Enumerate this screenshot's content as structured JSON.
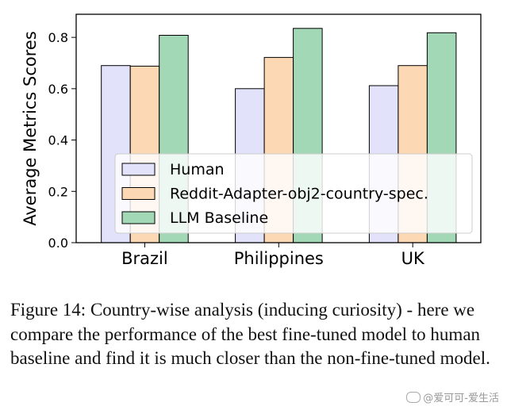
{
  "chart_data": {
    "type": "bar",
    "categories": [
      "Brazil",
      "Philippines",
      "UK"
    ],
    "series": [
      {
        "name": "Human",
        "values": [
          0.69,
          0.6,
          0.612
        ],
        "color": "#e2e2fa"
      },
      {
        "name": "Reddit-Adapter-obj2-country-spec.",
        "values": [
          0.688,
          0.722,
          0.69
        ],
        "color": "#fdd8b5"
      },
      {
        "name": "LLM Baseline",
        "values": [
          0.808,
          0.835,
          0.818
        ],
        "color": "#a2d8b6"
      }
    ],
    "ylabel": "Average Metrics Scores",
    "xlabel": "",
    "ylim": [
      0,
      0.89
    ],
    "yticks": [
      0.0,
      0.2,
      0.4,
      0.6,
      0.8
    ],
    "ytick_labels": [
      "0.0",
      "0.2",
      "0.4",
      "0.6",
      "0.8"
    ],
    "grid": false,
    "legend_position": "bottom-center"
  },
  "caption": "Figure 14: Country-wise analysis (inducing curiosity) - here we compare the performance of the best fine-tuned model to human baseline and find it is much closer than the non-fine-tuned model.",
  "watermark": "@爱可可-爱生活"
}
